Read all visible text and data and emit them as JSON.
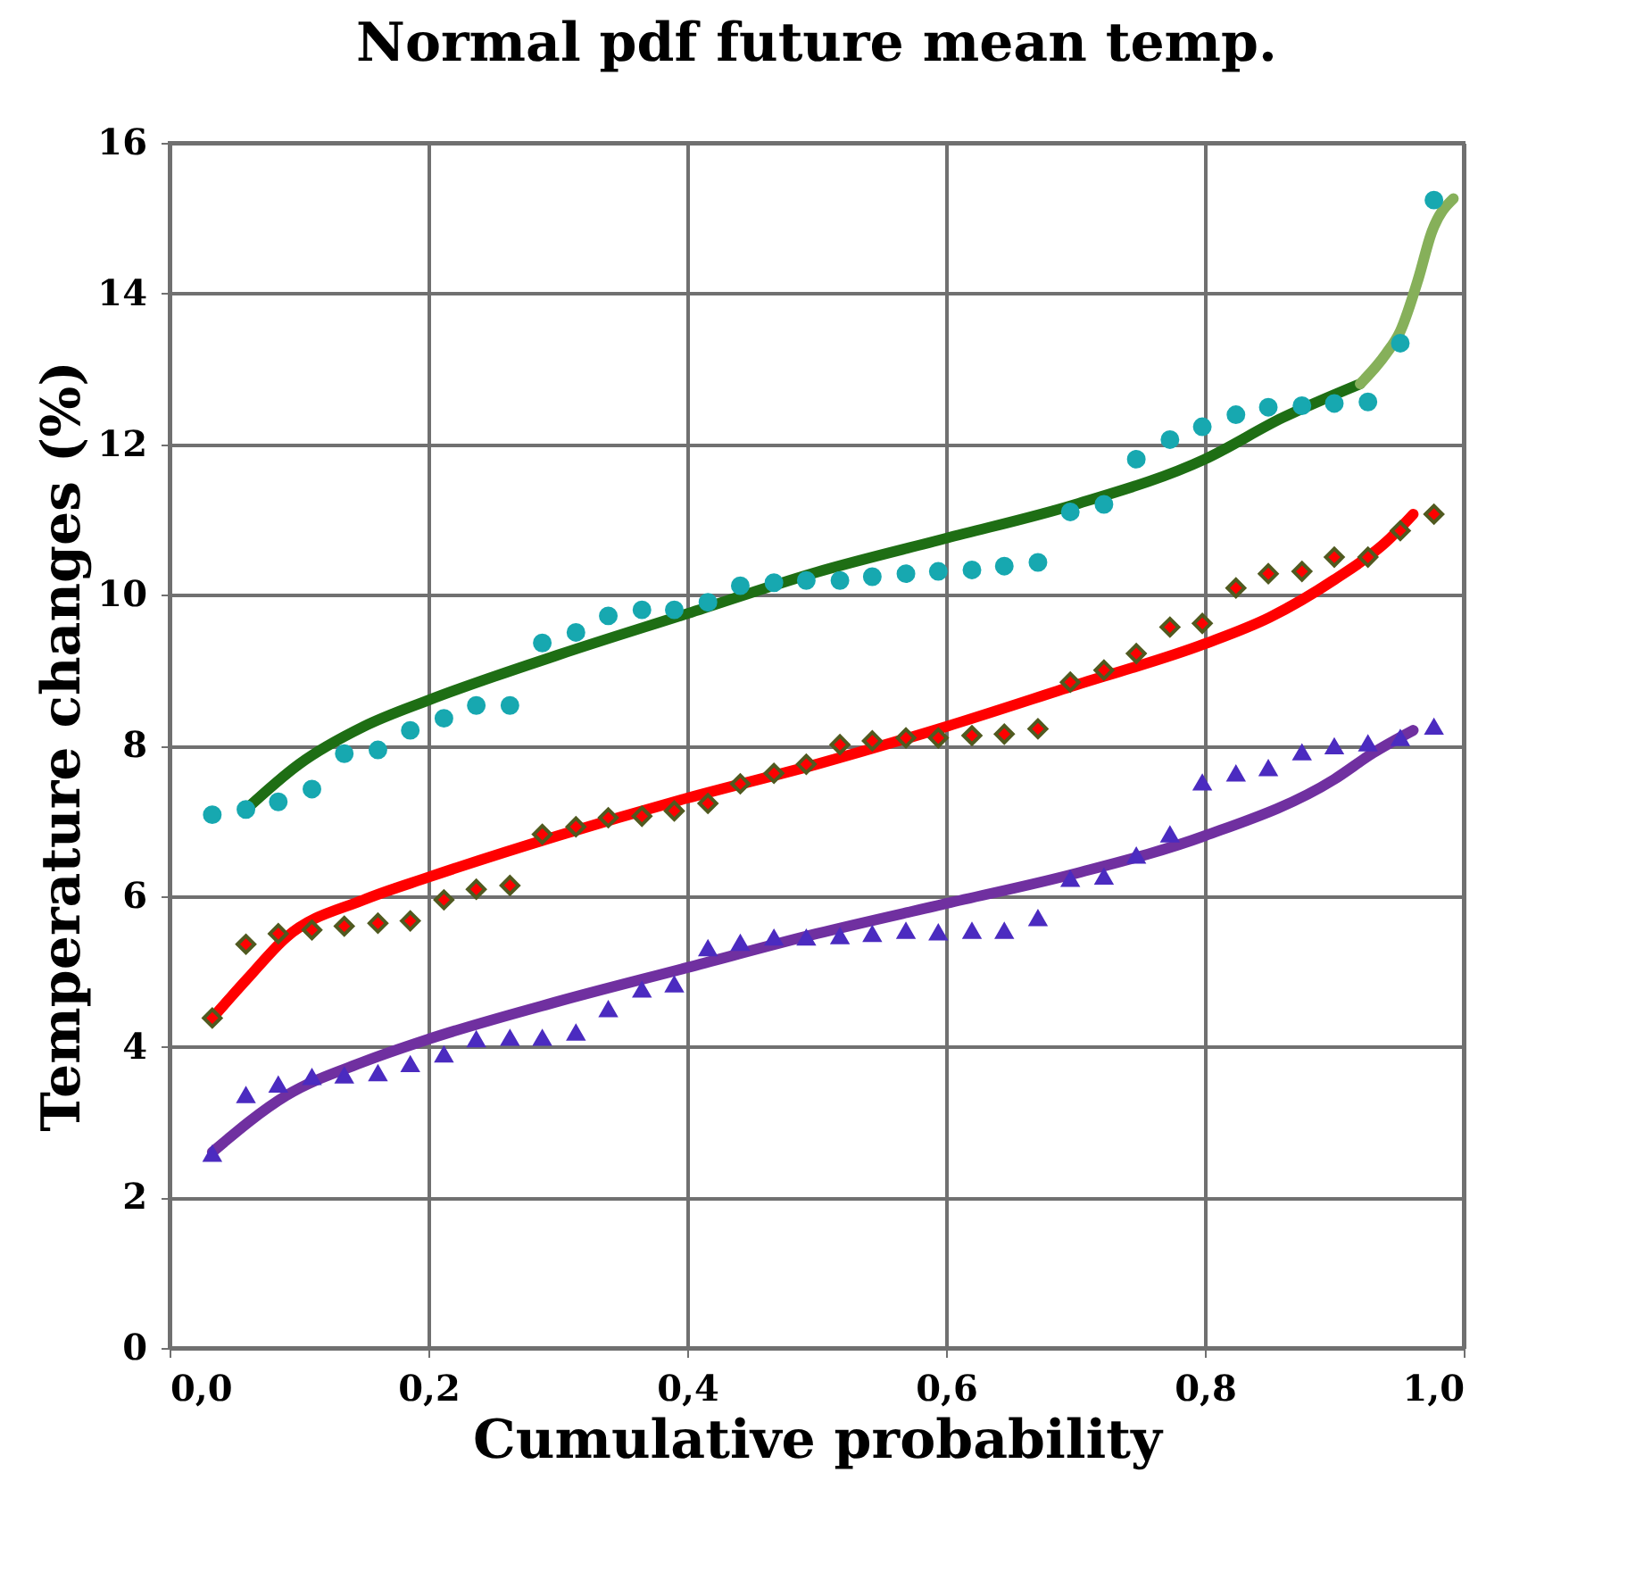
{
  "chart_data": {
    "type": "scatter",
    "title": "Normal pdf future mean temp.",
    "xlabel": "Cumulative probability",
    "ylabel": "Temperature  changes (%)",
    "xlim": [
      0,
      1
    ],
    "ylim": [
      0,
      16
    ],
    "xticks": [
      {
        "value": 0,
        "label": "0,0"
      },
      {
        "value": 0.2,
        "label": "0,2"
      },
      {
        "value": 0.4,
        "label": "0,4"
      },
      {
        "value": 0.6,
        "label": "0,6"
      },
      {
        "value": 0.8,
        "label": "0,8"
      },
      {
        "value": 1,
        "label": "1,0"
      }
    ],
    "yticks": [
      0,
      2,
      4,
      6,
      8,
      10,
      12,
      14,
      16
    ],
    "grid": true,
    "x": [
      0.033,
      0.059,
      0.084,
      0.11,
      0.135,
      0.161,
      0.186,
      0.212,
      0.237,
      0.263,
      0.288,
      0.314,
      0.339,
      0.365,
      0.39,
      0.416,
      0.441,
      0.467,
      0.492,
      0.518,
      0.543,
      0.569,
      0.594,
      0.62,
      0.645,
      0.671,
      0.696,
      0.722,
      0.747,
      0.773,
      0.798,
      0.824,
      0.849,
      0.875,
      0.9,
      0.926,
      0.951,
      0.977
    ],
    "series": [
      {
        "type": "line",
        "color": "#1e6e14",
        "x": [
          0.059,
          0.1,
          0.15,
          0.2,
          0.3,
          0.4,
          0.5,
          0.6,
          0.7,
          0.8,
          0.86,
          0.92
        ],
        "values": [
          7.15,
          7.75,
          8.25,
          8.6,
          9.2,
          9.75,
          10.3,
          10.75,
          11.2,
          11.8,
          12.35,
          12.8
        ]
      },
      {
        "type": "line",
        "color": "#86b05a",
        "x": [
          0.92,
          0.94,
          0.951,
          0.965,
          0.975,
          0.992
        ],
        "values": [
          12.8,
          13.2,
          13.5,
          14.2,
          14.8,
          15.26
        ]
      },
      {
        "type": "line",
        "color": "#ff0000",
        "x": [
          0.033,
          0.06,
          0.09,
          0.15,
          0.2,
          0.3,
          0.4,
          0.5,
          0.6,
          0.7,
          0.8,
          0.85,
          0.9,
          0.94,
          0.961
        ],
        "values": [
          4.38,
          4.9,
          5.45,
          5.95,
          6.25,
          6.8,
          7.3,
          7.75,
          8.25,
          8.8,
          9.35,
          9.7,
          10.2,
          10.7,
          11.07
        ]
      },
      {
        "type": "line",
        "color": "#7030a0",
        "x": [
          0.033,
          0.09,
          0.15,
          0.2,
          0.3,
          0.4,
          0.5,
          0.6,
          0.7,
          0.8,
          0.9,
          0.93,
          0.961
        ],
        "values": [
          2.6,
          3.35,
          3.8,
          4.1,
          4.6,
          5.05,
          5.5,
          5.9,
          6.3,
          6.8,
          7.55,
          7.9,
          8.2
        ]
      },
      {
        "marker": "circle",
        "color": "#17a8b0",
        "values": [
          7.08,
          7.15,
          7.25,
          7.42,
          7.89,
          7.94,
          8.2,
          8.36,
          8.53,
          8.53,
          9.36,
          9.5,
          9.72,
          9.8,
          9.8,
          9.9,
          10.12,
          10.16,
          10.19,
          10.19,
          10.24,
          10.28,
          10.31,
          10.33,
          10.38,
          10.43,
          11.1,
          11.2,
          11.8,
          12.06,
          12.23,
          12.39,
          12.49,
          12.51,
          12.54,
          12.56,
          13.34,
          15.24
        ]
      },
      {
        "marker": "diamond",
        "color": "#ff0000",
        "values": [
          4.38,
          5.36,
          5.5,
          5.55,
          5.6,
          5.64,
          5.67,
          5.95,
          6.09,
          6.14,
          6.82,
          6.92,
          7.04,
          7.06,
          7.13,
          7.23,
          7.49,
          7.63,
          7.75,
          8.01,
          8.06,
          8.1,
          8.1,
          8.13,
          8.15,
          8.22,
          8.84,
          9.0,
          9.22,
          9.57,
          9.62,
          10.09,
          10.28,
          10.31,
          10.5,
          10.5,
          10.85,
          11.07
        ]
      },
      {
        "marker": "triangle",
        "color": "#4b2bc0",
        "values": [
          2.58,
          3.36,
          3.5,
          3.6,
          3.62,
          3.65,
          3.77,
          3.9,
          4.1,
          4.12,
          4.12,
          4.19,
          4.5,
          4.76,
          4.83,
          5.31,
          5.38,
          5.45,
          5.45,
          5.47,
          5.5,
          5.54,
          5.52,
          5.54,
          5.54,
          5.71,
          6.23,
          6.26,
          6.54,
          6.82,
          7.51,
          7.63,
          7.7,
          7.91,
          7.99,
          8.03,
          8.1,
          8.25
        ]
      }
    ]
  }
}
